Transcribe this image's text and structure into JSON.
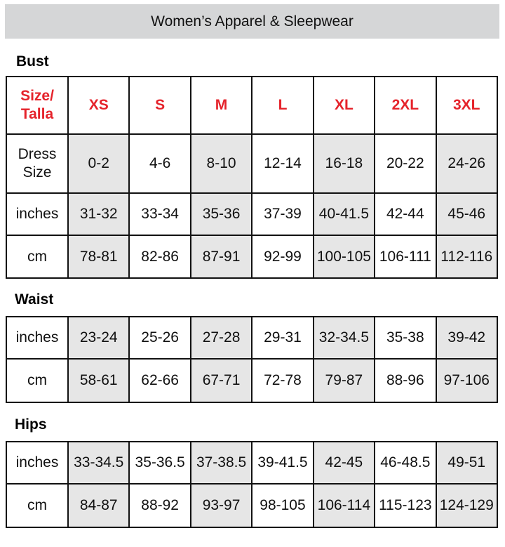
{
  "title": "Women’s Apparel & Sleepwear",
  "shaded_color": "#e6e6e6",
  "size_header_color": "#e5232b",
  "bust": {
    "label": "Bust",
    "header": [
      "Size/\nTalla",
      "XS",
      "S",
      "M",
      "L",
      "XL",
      "2XL",
      "3XL"
    ],
    "rows": [
      [
        "Dress\nSize",
        "0-2",
        "4-6",
        "8-10",
        "12-14",
        "16-18",
        "20-22",
        "24-26"
      ],
      [
        "inches",
        "31-32",
        "33-34",
        "35-36",
        "37-39",
        "40-41.5",
        "42-44",
        "45-46"
      ],
      [
        "cm",
        "78-81",
        "82-86",
        "87-91",
        "92-99",
        "100-105",
        "106-111",
        "112-116"
      ]
    ]
  },
  "waist": {
    "label": "Waist",
    "rows": [
      [
        "inches",
        "23-24",
        "25-26",
        "27-28",
        "29-31",
        "32-34.5",
        "35-38",
        "39-42"
      ],
      [
        "cm",
        "58-61",
        "62-66",
        "67-71",
        "72-78",
        "79-87",
        "88-96",
        "97-106"
      ]
    ]
  },
  "hips": {
    "label": "Hips",
    "rows": [
      [
        "inches",
        "33-34.5",
        "35-36.5",
        "37-38.5",
        "39-41.5",
        "42-45",
        "46-48.5",
        "49-51"
      ],
      [
        "cm",
        "84-87",
        "88-92",
        "93-97",
        "98-105",
        "106-114",
        "115-123",
        "124-129"
      ]
    ]
  }
}
